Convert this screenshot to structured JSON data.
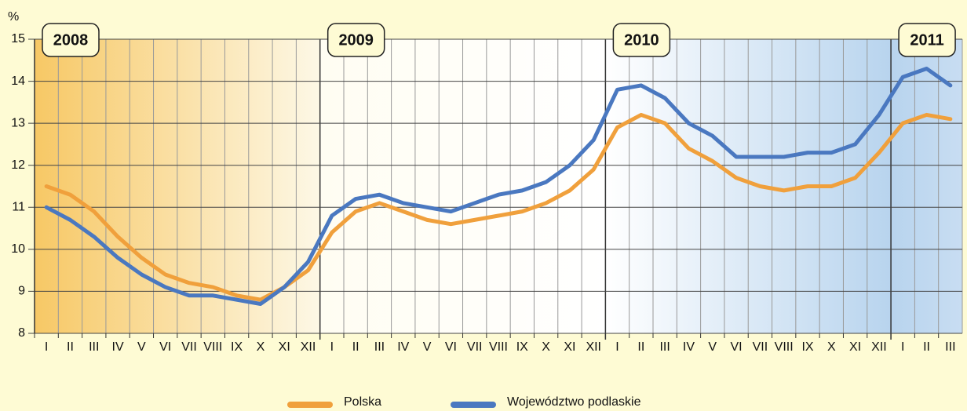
{
  "chart_data": {
    "type": "line",
    "unit_label": "%",
    "year_labels": [
      "2008",
      "2009",
      "2010",
      "2011"
    ],
    "categories": [
      "I",
      "II",
      "III",
      "IV",
      "V",
      "VI",
      "VII",
      "VIII",
      "IX",
      "X",
      "XI",
      "XII",
      "I",
      "II",
      "III",
      "IV",
      "V",
      "VI",
      "VII",
      "VIII",
      "IX",
      "X",
      "XI",
      "XII",
      "I",
      "II",
      "III",
      "IV",
      "V",
      "VI",
      "VII",
      "VIII",
      "IX",
      "X",
      "XI",
      "XII",
      "I",
      "II",
      "III"
    ],
    "series": [
      {
        "name": "Polska",
        "color": "#f0a03c",
        "values": [
          11.5,
          11.3,
          10.9,
          10.3,
          9.8,
          9.4,
          9.2,
          9.1,
          8.9,
          8.8,
          9.1,
          9.5,
          10.4,
          10.9,
          11.1,
          10.9,
          10.7,
          10.6,
          10.7,
          10.8,
          10.9,
          11.1,
          11.4,
          11.9,
          12.9,
          13.2,
          13.0,
          12.4,
          12.1,
          11.7,
          11.5,
          11.4,
          11.5,
          11.5,
          11.7,
          12.3,
          13.0,
          13.2,
          13.1
        ]
      },
      {
        "name": "Województwo podlaskie",
        "color": "#4a78c0",
        "values": [
          11.0,
          10.7,
          10.3,
          9.8,
          9.4,
          9.1,
          8.9,
          8.9,
          8.8,
          8.7,
          9.1,
          9.7,
          10.8,
          11.2,
          11.3,
          11.1,
          11.0,
          10.9,
          11.1,
          11.3,
          11.4,
          11.6,
          12.0,
          12.6,
          13.8,
          13.9,
          13.6,
          13.0,
          12.7,
          12.2,
          12.2,
          12.2,
          12.3,
          12.3,
          12.5,
          13.2,
          14.1,
          14.3,
          13.9
        ]
      }
    ],
    "ylim": [
      8,
      15
    ],
    "yticks": [
      8,
      9,
      10,
      11,
      12,
      13,
      14,
      15
    ],
    "grid": true
  }
}
